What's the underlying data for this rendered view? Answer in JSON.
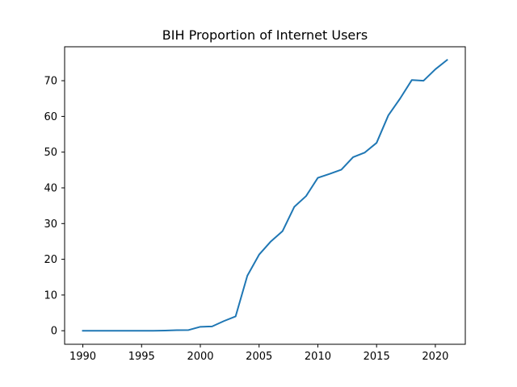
{
  "chart_data": {
    "type": "line",
    "title": "BIH Proportion of Internet Users",
    "xlabel": "",
    "ylabel": "",
    "xlim": [
      1988.45,
      2022.55
    ],
    "ylim": [
      -3.79,
      79.5
    ],
    "x_ticks": [
      1990,
      1995,
      2000,
      2005,
      2010,
      2015,
      2020
    ],
    "y_ticks": [
      0,
      10,
      20,
      30,
      40,
      50,
      60,
      70
    ],
    "grid": false,
    "legend": "none",
    "colors": {
      "line": "#1f77b4"
    },
    "series": [
      {
        "x": [
          1990,
          1991,
          1992,
          1993,
          1994,
          1995,
          1996,
          1997,
          1998,
          1999,
          2000,
          2001,
          2002,
          2003,
          2004,
          2005,
          2006,
          2007,
          2008,
          2009,
          2010,
          2011,
          2012,
          2013,
          2014,
          2015,
          2016,
          2017,
          2018,
          2019,
          2020,
          2021
        ],
        "values": [
          0,
          0,
          0,
          0,
          0,
          0,
          0,
          0.05,
          0.15,
          0.2,
          1.1,
          1.2,
          2.7,
          4.0,
          15.4,
          21.3,
          25.0,
          27.9,
          34.7,
          37.7,
          42.8,
          43.9,
          45.1,
          48.6,
          49.9,
          52.6,
          60.3,
          65.0,
          70.2,
          70.0,
          73.2,
          75.8
        ]
      }
    ]
  }
}
